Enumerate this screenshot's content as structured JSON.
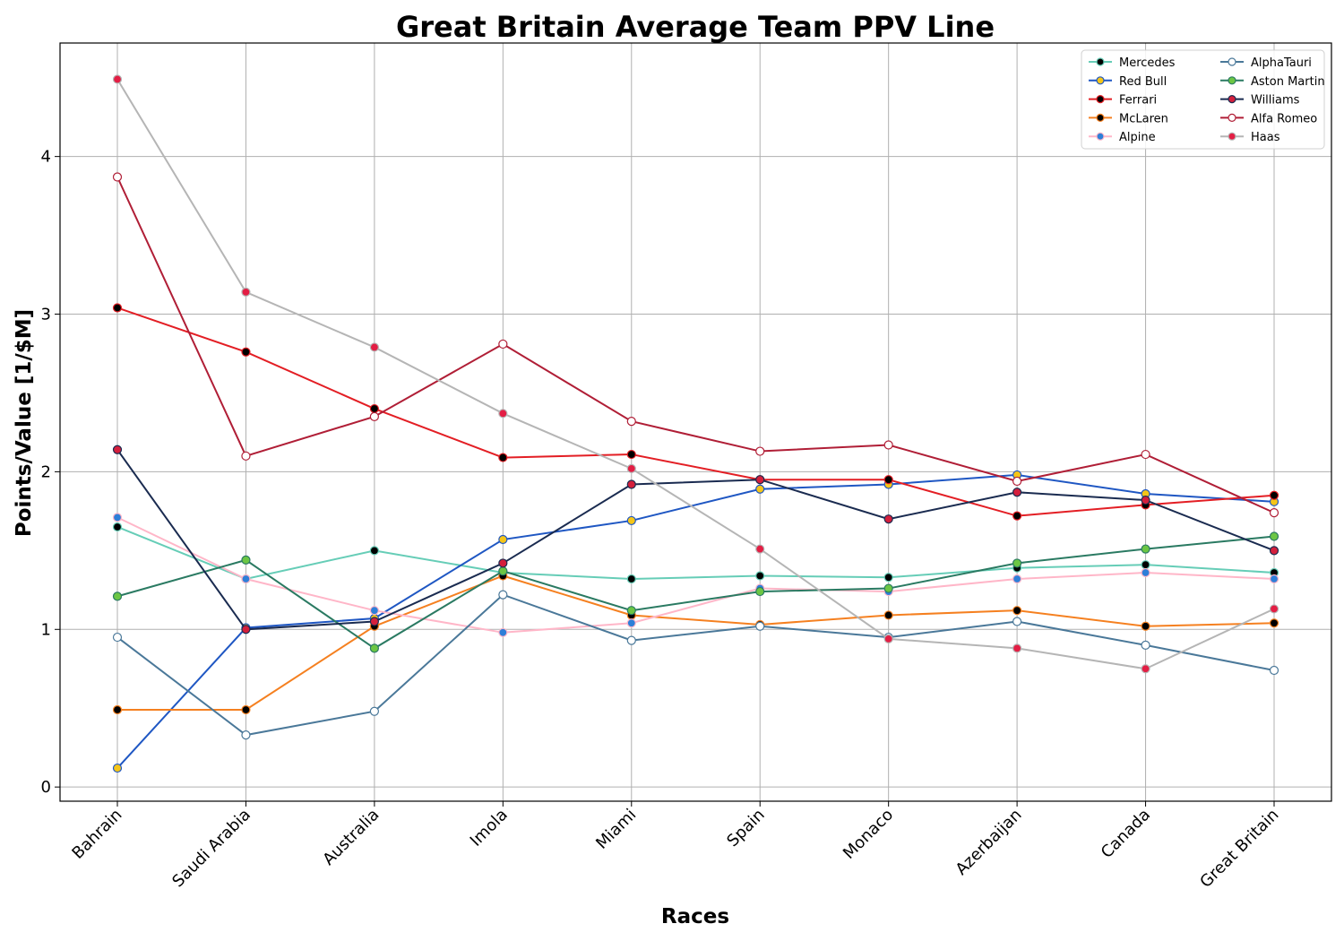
{
  "chart_data": {
    "type": "line",
    "title": "Great Britain Average Team PPV Line",
    "xlabel": "Races",
    "ylabel": "Points/Value [1/$M]",
    "categories": [
      "Bahrain",
      "Saudi Arabia",
      "Australia",
      "Imola",
      "Miami",
      "Spain",
      "Monaco",
      "Azerbaijan",
      "Canada",
      "Great Britain"
    ],
    "ylim": [
      -0.09,
      4.72
    ],
    "yticks": [
      "0",
      "1",
      "2",
      "3",
      "4"
    ],
    "grid": true,
    "legend_position": "top-right",
    "series": [
      {
        "name": "Mercedes",
        "line_color": "#66cdb7",
        "marker_face": "#000000",
        "marker_edge": "#66cdb7",
        "values": [
          1.65,
          1.32,
          1.5,
          1.36,
          1.32,
          1.34,
          1.33,
          1.39,
          1.41,
          1.36
        ]
      },
      {
        "name": "Red Bull",
        "line_color": "#1f57c3",
        "marker_face": "#f5c518",
        "marker_edge": "#1f57c3",
        "values": [
          0.12,
          1.01,
          1.07,
          1.57,
          1.69,
          1.89,
          1.92,
          1.98,
          1.86,
          1.81
        ]
      },
      {
        "name": "Ferrari",
        "line_color": "#e31e24",
        "marker_face": "#000000",
        "marker_edge": "#e31e24",
        "values": [
          3.04,
          2.76,
          2.4,
          2.09,
          2.11,
          1.95,
          1.95,
          1.72,
          1.79,
          1.85
        ]
      },
      {
        "name": "McLaren",
        "line_color": "#f58020",
        "marker_face": "#000000",
        "marker_edge": "#f58020",
        "values": [
          0.49,
          0.49,
          1.02,
          1.34,
          1.09,
          1.03,
          1.09,
          1.12,
          1.02,
          1.04
        ]
      },
      {
        "name": "Alpine",
        "line_color": "#ffb6c8",
        "marker_face": "#2e7fd8",
        "marker_edge": "#ffb6c8",
        "values": [
          1.71,
          1.32,
          1.12,
          0.98,
          1.04,
          1.26,
          1.24,
          1.32,
          1.36,
          1.32
        ]
      },
      {
        "name": "AlphaTauri",
        "line_color": "#4a7899",
        "marker_face": "#ffffff",
        "marker_edge": "#4a7899",
        "values": [
          0.95,
          0.33,
          0.48,
          1.22,
          0.93,
          1.02,
          0.95,
          1.05,
          0.9,
          0.74
        ]
      },
      {
        "name": "Aston Martin",
        "line_color": "#2a7a62",
        "marker_face": "#6cc644",
        "marker_edge": "#2a7a62",
        "values": [
          1.21,
          1.44,
          0.88,
          1.37,
          1.12,
          1.24,
          1.26,
          1.42,
          1.51,
          1.59
        ]
      },
      {
        "name": "Williams",
        "line_color": "#1a2b50",
        "marker_face": "#d41f3c",
        "marker_edge": "#1a2b50",
        "values": [
          2.14,
          1.0,
          1.05,
          1.42,
          1.92,
          1.95,
          1.7,
          1.87,
          1.82,
          1.5
        ]
      },
      {
        "name": "Alfa Romeo",
        "line_color": "#b01e36",
        "marker_face": "#ffffff",
        "marker_edge": "#b01e36",
        "values": [
          3.87,
          2.1,
          2.35,
          2.81,
          2.32,
          2.13,
          2.17,
          1.94,
          2.11,
          1.74
        ]
      },
      {
        "name": "Haas",
        "line_color": "#b5b5b5",
        "marker_face": "#e31e44",
        "marker_edge": "#b5b5b5",
        "values": [
          4.49,
          3.14,
          2.79,
          2.37,
          2.02,
          1.51,
          0.94,
          0.88,
          0.75,
          1.13
        ]
      }
    ]
  }
}
